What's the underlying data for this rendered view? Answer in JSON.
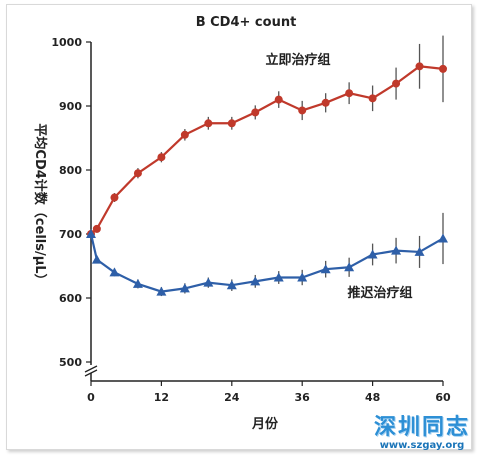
{
  "chart_data": {
    "type": "line",
    "title": "B  CD4+ count",
    "xlabel": "月份",
    "ylabel": "平均CD4计数（cells/μL）",
    "x_ticks": [
      0,
      12,
      24,
      36,
      48,
      60
    ],
    "y_ticks": [
      500,
      600,
      700,
      800,
      900,
      1000
    ],
    "xlim": [
      0,
      60
    ],
    "ylim": [
      500,
      1000
    ],
    "axis_break": "y",
    "grid": false,
    "series": [
      {
        "name": "立即治疗组",
        "color": "#c0392b",
        "marker": "circle",
        "x": [
          0,
          1,
          4,
          8,
          12,
          16,
          20,
          24,
          28,
          32,
          36,
          40,
          44,
          48,
          52,
          56,
          60
        ],
        "y": [
          700,
          708,
          757,
          795,
          820,
          855,
          873,
          873,
          890,
          910,
          893,
          905,
          920,
          912,
          935,
          962,
          958
        ],
        "err": [
          6,
          6,
          7,
          8,
          8,
          9,
          10,
          10,
          11,
          13,
          15,
          15,
          17,
          20,
          25,
          35,
          52
        ]
      },
      {
        "name": "推迟治疗组",
        "color": "#2e5fa8",
        "marker": "triangle",
        "x": [
          0,
          1,
          4,
          8,
          12,
          16,
          20,
          24,
          28,
          32,
          36,
          40,
          44,
          48,
          52,
          56,
          60
        ],
        "y": [
          700,
          660,
          640,
          622,
          610,
          615,
          624,
          620,
          626,
          632,
          632,
          645,
          648,
          668,
          674,
          672,
          693
        ],
        "err": [
          6,
          6,
          6,
          7,
          7,
          8,
          8,
          9,
          10,
          10,
          12,
          13,
          15,
          17,
          20,
          25,
          40
        ]
      }
    ]
  },
  "watermark": {
    "text": "深圳同志",
    "url": "www.szgay.org",
    "color": "#2d8fd5"
  }
}
